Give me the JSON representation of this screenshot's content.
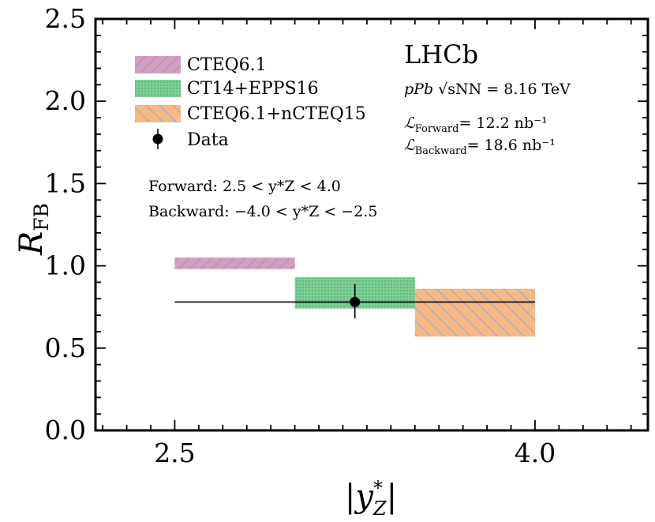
{
  "chart_data": {
    "type": "bar",
    "xlabel_parts": [
      "|",
      "y",
      "*",
      "Z",
      "|"
    ],
    "ylabel_parts": [
      "R",
      "FB"
    ],
    "ylim": [
      0,
      2.5
    ],
    "xlim": [
      2.17,
      4.47
    ],
    "x_ticks": [
      2.5,
      4.0
    ],
    "x_tick_labels": [
      "2.5",
      "4.0"
    ],
    "y_ticks": [
      0,
      0.5,
      1.0,
      1.5,
      2.0,
      2.5
    ],
    "y_tick_labels": [
      "0.0",
      "0.5",
      "1.0",
      "1.5",
      "2.0",
      "2.5"
    ],
    "series": [
      {
        "name": "CTEQ6.1",
        "x_range": [
          2.5,
          3.0
        ],
        "y_range": [
          0.98,
          1.05
        ],
        "color": "#c8a2c8",
        "hatch": "#f08080",
        "style": "diag-right"
      },
      {
        "name": "CT14+EPPS16",
        "x_range": [
          3.0,
          3.5
        ],
        "y_range": [
          0.74,
          0.93
        ],
        "color": "#5dbe7e",
        "hatch": "#9fdcaf",
        "style": "grid"
      },
      {
        "name": "CTEQ6.1+nCTEQ15",
        "x_range": [
          3.5,
          4.0
        ],
        "y_range": [
          0.57,
          0.86
        ],
        "color": "#f6b983",
        "hatch": "#8faadc",
        "style": "diag-left"
      }
    ],
    "data_point": {
      "name": "Data",
      "x": 3.25,
      "y": 0.78,
      "x_err": [
        2.5,
        4.0
      ],
      "y_err": [
        0.68,
        0.89
      ]
    }
  },
  "legend": {
    "items": [
      "CTEQ6.1",
      "CT14+EPPS16",
      "CTEQ6.1+nCTEQ15",
      "Data"
    ]
  },
  "annotations": {
    "forward_label": "Forward:",
    "forward_expr": "2.5 < y*Z < 4.0",
    "backward_label": "Backward:",
    "backward_expr": "−4.0 < y*Z < −2.5",
    "experiment": "LHCb",
    "collision_system": "pPb",
    "energy_symbol": "√sNN",
    "energy_value": "= 8.16 TeV",
    "lumi_forward_sub": "Forward",
    "lumi_forward_value": "= 12.2 nb⁻¹",
    "lumi_backward_sub": "Backward",
    "lumi_backward_value": "= 18.6 nb⁻¹"
  }
}
